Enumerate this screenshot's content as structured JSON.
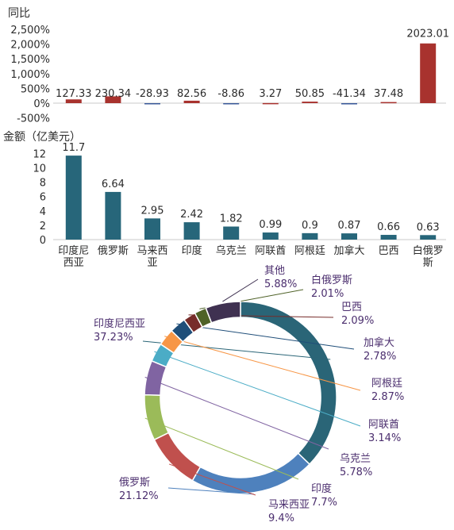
{
  "colors": {
    "yoy_positive": "#a8322e",
    "yoy_negative": "#3a5a9a",
    "amount_bar": "#27667a",
    "axis": "#c8c8c8",
    "text": "#2b2b2b",
    "label_purple": "#4b2e6e"
  },
  "chart_data": [
    {
      "type": "bar",
      "ylabel": "同比",
      "ylim": [
        -500,
        2500
      ],
      "yticks": [
        "2,500%",
        "2,000%",
        "1,500%",
        "1,000%",
        "500%",
        "0%",
        "-500%"
      ],
      "ytick_values": [
        2500,
        2000,
        1500,
        1000,
        500,
        0,
        -500
      ],
      "categories": [
        "印度尼西亚",
        "俄罗斯",
        "马来西亚",
        "印度",
        "乌克兰",
        "阿联酋",
        "阿根廷",
        "加拿大",
        "巴西",
        "白俄罗斯"
      ],
      "values": [
        127.33,
        230.34,
        -28.93,
        82.56,
        -8.86,
        3.27,
        50.85,
        -41.34,
        37.48,
        2023.01
      ],
      "value_labels": [
        "127.33",
        "230.34",
        "-28.93",
        "82.56",
        "-8.86",
        "3.27",
        "50.85",
        "-41.34",
        "37.48",
        "2023.01"
      ]
    },
    {
      "type": "bar",
      "ylabel": "金额（亿美元）",
      "ylim": [
        0,
        12
      ],
      "yticks": [
        "12",
        "10",
        "8",
        "6",
        "4",
        "2",
        "0"
      ],
      "ytick_values": [
        12,
        10,
        8,
        6,
        4,
        2,
        0
      ],
      "categories": [
        "印度尼西亚",
        "俄罗斯",
        "马来西亚",
        "印度",
        "乌克兰",
        "阿联酋",
        "阿根廷",
        "加拿大",
        "巴西",
        "白俄罗斯"
      ],
      "category_lines": [
        [
          "印度尼",
          "西亚"
        ],
        [
          "俄罗斯"
        ],
        [
          "马来西",
          "亚"
        ],
        [
          "印度"
        ],
        [
          "乌克兰"
        ],
        [
          "阿联酋"
        ],
        [
          "阿根廷"
        ],
        [
          "加拿大"
        ],
        [
          "巴西"
        ],
        [
          "白俄罗",
          "斯"
        ]
      ],
      "values": [
        11.7,
        6.64,
        2.95,
        2.42,
        1.82,
        0.99,
        0.9,
        0.87,
        0.66,
        0.63
      ],
      "value_labels": [
        "11.7",
        "6.64",
        "2.95",
        "2.42",
        "1.82",
        "0.99",
        "0.9",
        "0.87",
        "0.66",
        "0.63"
      ]
    },
    {
      "type": "pie",
      "donut": true,
      "slices": [
        {
          "name": "印度尼西亚",
          "value": 37.23,
          "label": "37.23%",
          "color": "#2a6577"
        },
        {
          "name": "俄罗斯",
          "value": 21.12,
          "label": "21.12%",
          "color": "#4e81bd"
        },
        {
          "name": "马来西亚",
          "value": 9.4,
          "label": "9.4%",
          "color": "#c0504d"
        },
        {
          "name": "印度",
          "value": 7.7,
          "label": "7.7%",
          "color": "#9bbb59"
        },
        {
          "name": "乌克兰",
          "value": 5.78,
          "label": "5.78%",
          "color": "#8064a2"
        },
        {
          "name": "阿联酋",
          "value": 3.14,
          "label": "3.14%",
          "color": "#4bacc6"
        },
        {
          "name": "阿根廷",
          "value": 2.87,
          "label": "2.87%",
          "color": "#f79646"
        },
        {
          "name": "加拿大",
          "value": 2.78,
          "label": "2.78%",
          "color": "#1f4e79"
        },
        {
          "name": "巴西",
          "value": 2.09,
          "label": "2.09%",
          "color": "#772c2a"
        },
        {
          "name": "白俄罗斯",
          "value": 2.01,
          "label": "2.01%",
          "color": "#4f6228"
        },
        {
          "name": "其他",
          "value": 5.88,
          "label": "5.88%",
          "color": "#3f3151"
        }
      ]
    }
  ]
}
